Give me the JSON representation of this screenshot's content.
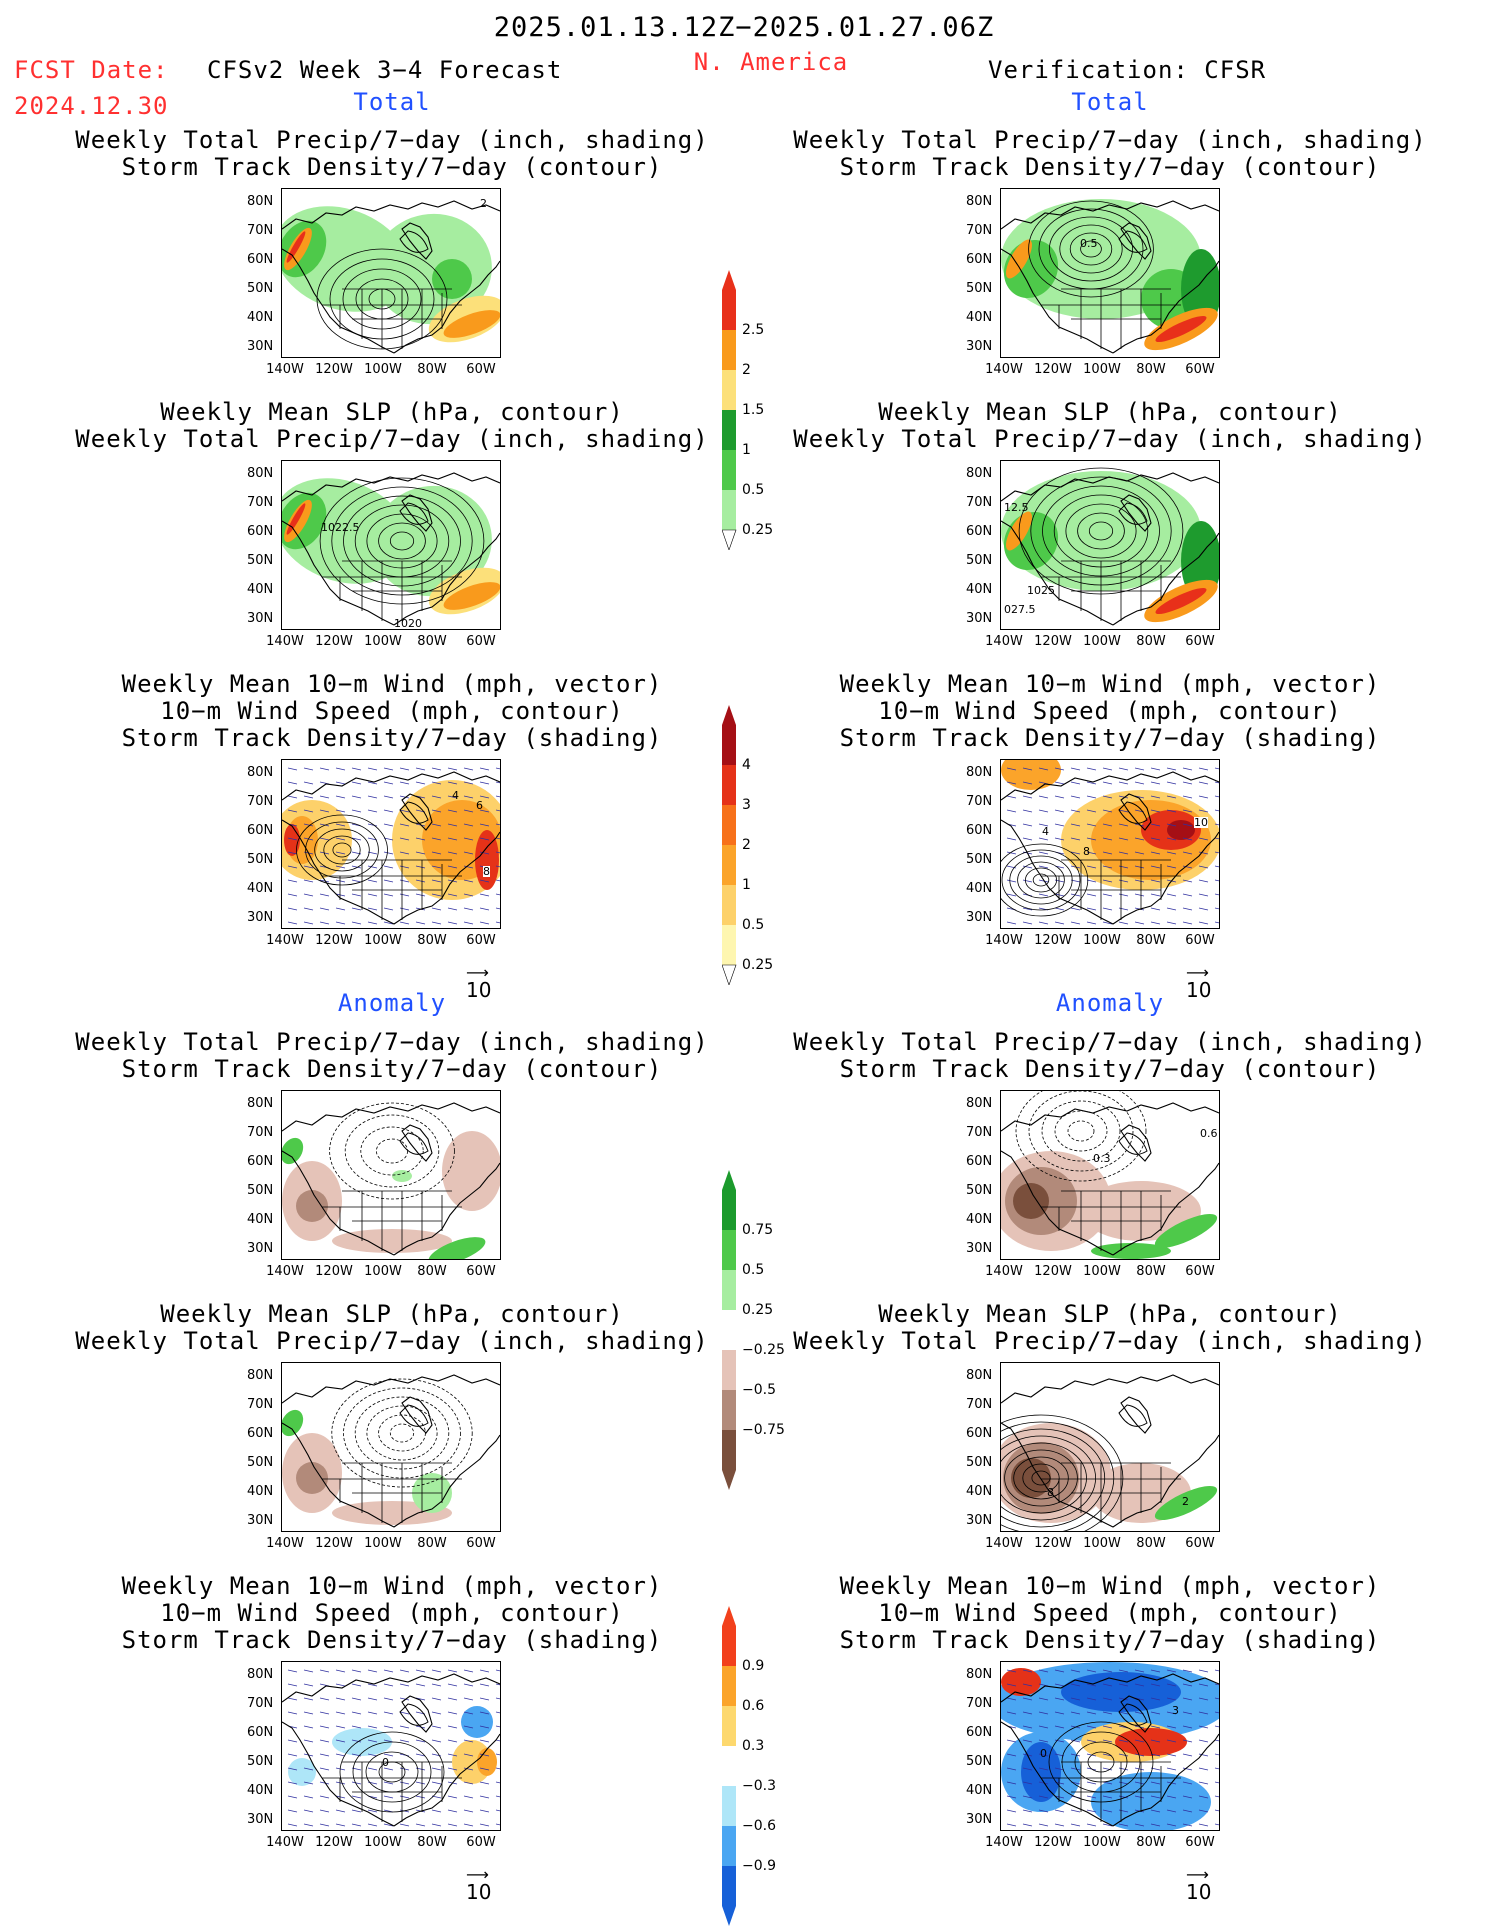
{
  "header": {
    "period": "2025.01.13.12Z−2025.01.27.06Z",
    "fcst_label": "FCST Date:",
    "fcst_date": "2024.12.30",
    "forecast_title": "CFSv2 Week 3−4 Forecast",
    "region": "N. America",
    "verification": "Verification: CFSR"
  },
  "sections": {
    "total": "Total",
    "anomaly": "Anomaly"
  },
  "panel_titles": {
    "precip_storm": [
      "Weekly Total Precip/7−day (inch, shading)",
      "Storm Track Density/7−day (contour)"
    ],
    "slp_precip": [
      "Weekly Mean SLP (hPa, contour)",
      "Weekly Total Precip/7−day (inch, shading)"
    ],
    "wind_storm": [
      "Weekly Mean 10−m Wind (mph, vector)",
      "10−m Wind Speed (mph, contour)",
      "Storm Track Density/7−day (shading)"
    ]
  },
  "axes": {
    "lat_labels": [
      "80N",
      "70N",
      "60N",
      "50N",
      "40N",
      "30N"
    ],
    "lon_labels": [
      "140W",
      "120W",
      "100W",
      "80W",
      "60W"
    ]
  },
  "vector_reference": "10",
  "contour_labels": {
    "fc_total_precip": "2",
    "ob_total_precip": "0.5",
    "fc_total_slp_a": "1022.5",
    "fc_total_slp_b": "1020",
    "ob_total_slp_a": "12.5",
    "ob_total_slp_b": "1025",
    "ob_total_slp_c": "027.5",
    "fc_total_wind_a": "4",
    "fc_total_wind_b": "6",
    "fc_total_wind_c": "8",
    "ob_total_wind_a": "4",
    "ob_total_wind_b": "8",
    "ob_total_wind_c": "10",
    "ob_anom_precip_a": "0.3",
    "ob_anom_precip_b": "0.6",
    "fc_anom_wind": "0",
    "ob_anom_slp_a": "8",
    "ob_anom_slp_b": "2",
    "ob_anom_wind_a": "0",
    "ob_anom_wind_b": "3"
  },
  "colorbars": {
    "precip_total": {
      "labels": [
        "2.5",
        "2",
        "1.5",
        "1",
        "0.5",
        "0.25"
      ],
      "colors": [
        "#e8301a",
        "#f99a1c",
        "#fce07a",
        "#1e9b2e",
        "#4ec94a",
        "#a6eda0"
      ]
    },
    "storm_total": {
      "labels": [
        "4",
        "3",
        "2",
        "1",
        "0.5",
        "0.25"
      ],
      "colors": [
        "#a50f15",
        "#e53218",
        "#f7711a",
        "#fba42a",
        "#fdd16a",
        "#fef6b0"
      ]
    },
    "precip_anom": {
      "labels": [
        "0.75",
        "0.5",
        "0.25",
        "−0.25",
        "−0.5",
        "−0.75"
      ],
      "colors": [
        "#1b9a2c",
        "#4ec94a",
        "#a6eda0",
        "#ffffff",
        "#e5c3b8",
        "#b28a7a",
        "#7a4f3c"
      ]
    },
    "storm_anom": {
      "labels": [
        "0.9",
        "0.6",
        "0.3",
        "−0.3",
        "−0.6",
        "−0.9"
      ],
      "colors": [
        "#f2401c",
        "#fba42a",
        "#fdd86e",
        "#ffffff",
        "#aee6f8",
        "#4aa6f2",
        "#1660d8"
      ]
    }
  }
}
